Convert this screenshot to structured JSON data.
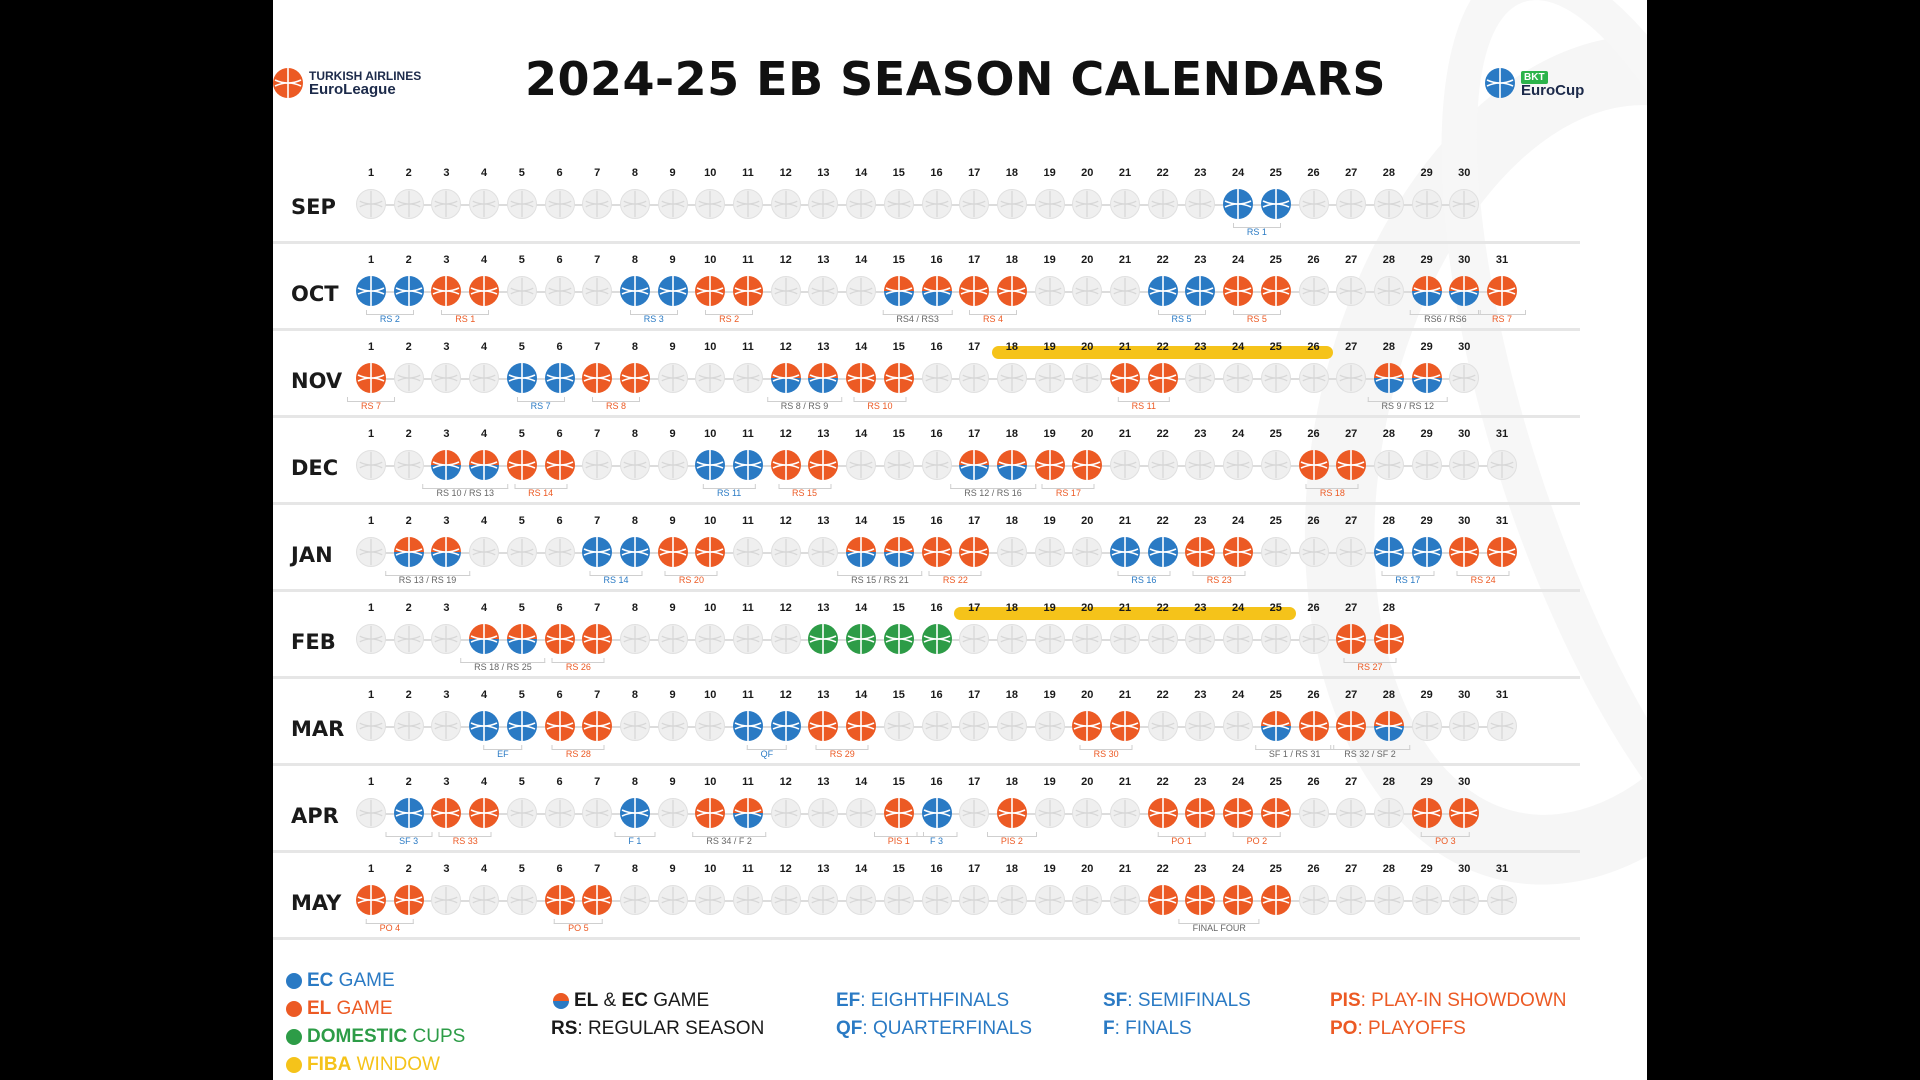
{
  "title": "2024-25 EB SEASON CALENDARS",
  "logos": {
    "euroleague": {
      "line1": "TURKISH AIRLINES",
      "line2": "EuroLeague"
    },
    "eurocup": {
      "line1": "BKT",
      "line2": "EuroCup"
    }
  },
  "colors": {
    "ec": "#2a7ac4",
    "el": "#ec5a24",
    "domestic": "#2d9c47",
    "fiba": "#f5c31a"
  },
  "months": [
    {
      "name": "SEP",
      "days": 30,
      "start": 1,
      "games": {
        "24": "ec",
        "25": "ec"
      },
      "fiba": null,
      "captions": [
        {
          "text": "RS 1",
          "from": 24,
          "to": 25,
          "cls": "ec"
        }
      ]
    },
    {
      "name": "OCT",
      "days": 31,
      "start": 1,
      "games": {
        "1": "ec",
        "2": "ec",
        "3": "el",
        "4": "el",
        "8": "ec",
        "9": "ec",
        "10": "el",
        "11": "el",
        "15": "both",
        "16": "both",
        "17": "el",
        "18": "el",
        "22": "ec",
        "23": "ec",
        "24": "el",
        "25": "el",
        "29": "both",
        "30": "both",
        "31": "el"
      },
      "fiba": null,
      "captions": [
        {
          "text": "RS 2",
          "from": 1,
          "to": 2,
          "cls": "ec"
        },
        {
          "text": "RS 1",
          "from": 3,
          "to": 4,
          "cls": "el"
        },
        {
          "text": "RS 3",
          "from": 8,
          "to": 9,
          "cls": "ec"
        },
        {
          "text": "RS 2",
          "from": 10,
          "to": 11,
          "cls": "el"
        },
        {
          "text": "RS4 / RS3",
          "from": 15,
          "to": 16,
          "cls": "mix"
        },
        {
          "text": "RS 4",
          "from": 17,
          "to": 18,
          "cls": "el"
        },
        {
          "text": "RS 5",
          "from": 22,
          "to": 23,
          "cls": "ec"
        },
        {
          "text": "RS 5",
          "from": 24,
          "to": 25,
          "cls": "el"
        },
        {
          "text": "RS6 / RS6",
          "from": 29,
          "to": 30,
          "cls": "mix"
        },
        {
          "text": "RS 7",
          "from": 31,
          "to": 31,
          "cls": "el"
        }
      ]
    },
    {
      "name": "NOV",
      "days": 30,
      "start": 1,
      "games": {
        "1": "el",
        "5": "ec",
        "6": "ec",
        "7": "el",
        "8": "el",
        "12": "both",
        "13": "both",
        "14": "el",
        "15": "el",
        "21": "el",
        "22": "el",
        "28": "both",
        "29": "both"
      },
      "fiba": [
        18,
        26
      ],
      "captions": [
        {
          "text": "RS 7",
          "from": 1,
          "to": 1,
          "cls": "el"
        },
        {
          "text": "RS 7",
          "from": 5,
          "to": 6,
          "cls": "ec"
        },
        {
          "text": "RS 8",
          "from": 7,
          "to": 8,
          "cls": "el"
        },
        {
          "text": "RS 8 / RS 9",
          "from": 12,
          "to": 13,
          "cls": "mix"
        },
        {
          "text": "RS 10",
          "from": 14,
          "to": 15,
          "cls": "el"
        },
        {
          "text": "RS 11",
          "from": 21,
          "to": 22,
          "cls": "el"
        },
        {
          "text": "RS 9 / RS 12",
          "from": 28,
          "to": 29,
          "cls": "mix"
        }
      ]
    },
    {
      "name": "DEC",
      "days": 31,
      "start": 1,
      "games": {
        "3": "both",
        "4": "both",
        "5": "el",
        "6": "el",
        "10": "ec",
        "11": "ec",
        "12": "el",
        "13": "el",
        "17": "both",
        "18": "both",
        "19": "el",
        "20": "el",
        "26": "el",
        "27": "el"
      },
      "fiba": null,
      "captions": [
        {
          "text": "RS 10 / RS 13",
          "from": 3,
          "to": 4,
          "cls": "mix"
        },
        {
          "text": "RS 14",
          "from": 5,
          "to": 6,
          "cls": "el"
        },
        {
          "text": "RS 11",
          "from": 10,
          "to": 11,
          "cls": "ec"
        },
        {
          "text": "RS 15",
          "from": 12,
          "to": 13,
          "cls": "el"
        },
        {
          "text": "RS 12 / RS 16",
          "from": 17,
          "to": 18,
          "cls": "mix"
        },
        {
          "text": "RS 17",
          "from": 19,
          "to": 20,
          "cls": "el"
        },
        {
          "text": "RS 18",
          "from": 26,
          "to": 27,
          "cls": "el"
        }
      ]
    },
    {
      "name": "JAN",
      "days": 31,
      "start": 1,
      "games": {
        "2": "both",
        "3": "both",
        "7": "ec",
        "8": "ec",
        "9": "el",
        "10": "el",
        "14": "both",
        "15": "both",
        "16": "el",
        "17": "el",
        "21": "ec",
        "22": "ec",
        "23": "el",
        "24": "el",
        "28": "ec",
        "29": "ec",
        "30": "el",
        "31": "el"
      },
      "fiba": null,
      "captions": [
        {
          "text": "RS 13 / RS 19",
          "from": 2,
          "to": 3,
          "cls": "mix"
        },
        {
          "text": "RS 14",
          "from": 7,
          "to": 8,
          "cls": "ec"
        },
        {
          "text": "RS 20",
          "from": 9,
          "to": 10,
          "cls": "el"
        },
        {
          "text": "RS 15 / RS 21",
          "from": 14,
          "to": 15,
          "cls": "mix"
        },
        {
          "text": "RS 22",
          "from": 16,
          "to": 17,
          "cls": "el"
        },
        {
          "text": "RS 16",
          "from": 21,
          "to": 22,
          "cls": "ec"
        },
        {
          "text": "RS 23",
          "from": 23,
          "to": 24,
          "cls": "el"
        },
        {
          "text": "RS 17",
          "from": 28,
          "to": 29,
          "cls": "ec"
        },
        {
          "text": "RS 24",
          "from": 30,
          "to": 31,
          "cls": "el"
        }
      ]
    },
    {
      "name": "FEB",
      "days": 28,
      "start": 1,
      "games": {
        "4": "both",
        "5": "both",
        "6": "el",
        "7": "el",
        "13": "dom",
        "14": "dom",
        "15": "dom",
        "16": "dom",
        "27": "el",
        "28": "el"
      },
      "fiba": [
        17,
        25
      ],
      "captions": [
        {
          "text": "RS 18 / RS 25",
          "from": 4,
          "to": 5,
          "cls": "mix"
        },
        {
          "text": "RS 26",
          "from": 6,
          "to": 7,
          "cls": "el"
        },
        {
          "text": "RS 27",
          "from": 27,
          "to": 28,
          "cls": "el"
        }
      ]
    },
    {
      "name": "MAR",
      "days": 31,
      "start": 1,
      "games": {
        "4": "ec",
        "5": "ec",
        "6": "el",
        "7": "el",
        "11": "ec",
        "12": "ec",
        "13": "el",
        "14": "el",
        "20": "el",
        "21": "el",
        "25": "both",
        "26": "el",
        "27": "el",
        "28": "both"
      },
      "fiba": null,
      "captions": [
        {
          "text": "EF",
          "from": 4,
          "to": 5,
          "cls": "ec"
        },
        {
          "text": "RS 28",
          "from": 6,
          "to": 7,
          "cls": "el"
        },
        {
          "text": "QF",
          "from": 11,
          "to": 12,
          "cls": "ec"
        },
        {
          "text": "RS 29",
          "from": 13,
          "to": 14,
          "cls": "el"
        },
        {
          "text": "RS 30",
          "from": 20,
          "to": 21,
          "cls": "el"
        },
        {
          "text": "SF 1 / RS 31",
          "from": 25,
          "to": 26,
          "cls": "mix"
        },
        {
          "text": "RS 32 / SF 2",
          "from": 27,
          "to": 28,
          "cls": "mix"
        }
      ]
    },
    {
      "name": "APR",
      "days": 30,
      "start": 1,
      "games": {
        "2": "ec",
        "3": "el",
        "4": "el",
        "8": "ec",
        "10": "el",
        "11": "both",
        "15": "el",
        "16": "ec",
        "18": "el",
        "22": "el",
        "23": "el",
        "24": "el",
        "25": "el",
        "29": "el",
        "30": "el"
      },
      "fiba": null,
      "captions": [
        {
          "text": "SF 3",
          "from": 2,
          "to": 2,
          "cls": "ec"
        },
        {
          "text": "RS 33",
          "from": 3,
          "to": 4,
          "cls": "el"
        },
        {
          "text": "F 1",
          "from": 8,
          "to": 8,
          "cls": "ec"
        },
        {
          "text": "RS 34 / F 2",
          "from": 10,
          "to": 11,
          "cls": "mix"
        },
        {
          "text": "PIS 1",
          "from": 15,
          "to": 15,
          "cls": "el"
        },
        {
          "text": "F 3",
          "from": 16,
          "to": 16,
          "cls": "ec"
        },
        {
          "text": "PIS 2",
          "from": 18,
          "to": 18,
          "cls": "el"
        },
        {
          "text": "PO 1",
          "from": 22,
          "to": 23,
          "cls": "el"
        },
        {
          "text": "PO 2",
          "from": 24,
          "to": 25,
          "cls": "el"
        },
        {
          "text": "PO 3",
          "from": 29,
          "to": 30,
          "cls": "el"
        }
      ]
    },
    {
      "name": "MAY",
      "days": 31,
      "start": 1,
      "games": {
        "1": "el",
        "2": "el",
        "6": "el",
        "7": "el",
        "22": "el",
        "23": "el",
        "24": "el",
        "25": "el"
      },
      "fiba": null,
      "captions": [
        {
          "text": "PO 4",
          "from": 1,
          "to": 2,
          "cls": "el"
        },
        {
          "text": "PO 5",
          "from": 6,
          "to": 7,
          "cls": "el"
        },
        {
          "text": "FINAL FOUR",
          "from": 22,
          "to": 25,
          "cls": "mix"
        }
      ]
    }
  ],
  "legend": {
    "ec_game": {
      "abbr": "EC",
      "rest": " GAME"
    },
    "el_game": {
      "abbr": "EL",
      "rest": " GAME"
    },
    "domestic": {
      "abbr": "DOMESTIC",
      "rest": " CUPS"
    },
    "fiba": {
      "abbr": "FIBA",
      "rest": " WINDOW"
    },
    "el_ec_game": {
      "abbr1": "EL",
      "amp": " & ",
      "abbr2": "EC",
      "rest": " GAME"
    },
    "rs": {
      "abbr": "RS",
      "rest": ": REGULAR SEASON"
    },
    "ef": {
      "abbr": "EF",
      "rest": ": EIGHTHFINALS"
    },
    "qf": {
      "abbr": "QF",
      "rest": ": QUARTERFINALS"
    },
    "sf": {
      "abbr": "SF",
      "rest": ": SEMIFINALS"
    },
    "f": {
      "abbr": "F",
      "rest": ": FINALS"
    },
    "pis": {
      "abbr": "PIS",
      "rest": ": PLAY-IN SHOWDOWN"
    },
    "po": {
      "abbr": "PO",
      "rest": ": PLAYOFFS"
    }
  }
}
